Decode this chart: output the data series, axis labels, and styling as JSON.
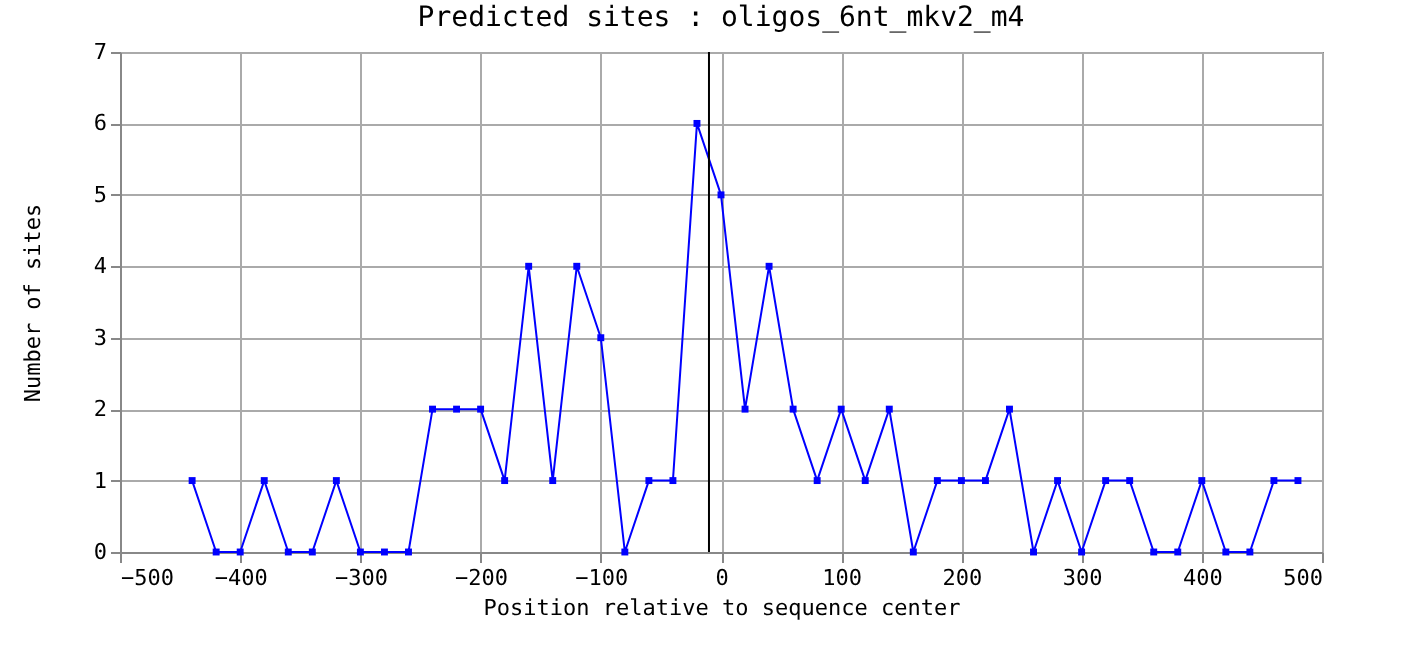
{
  "chart_data": {
    "type": "line",
    "title": "Predicted sites : oligos_6nt_mkv2_m4",
    "xlabel": "Position relative to sequence center",
    "ylabel": "Number of sites",
    "x": [
      -440,
      -420,
      -400,
      -380,
      -360,
      -340,
      -320,
      -300,
      -280,
      -260,
      -240,
      -220,
      -200,
      -180,
      -160,
      -140,
      -120,
      -100,
      -80,
      -60,
      -40,
      -20,
      0,
      20,
      40,
      60,
      80,
      100,
      120,
      140,
      160,
      180,
      200,
      220,
      240,
      260,
      280,
      300,
      320,
      340,
      360,
      380,
      400,
      420,
      440,
      460,
      480
    ],
    "series": [
      {
        "color": "#0000ff",
        "values": [
          1,
          0,
          0,
          1,
          0,
          0,
          1,
          0,
          0,
          0,
          2,
          2,
          2,
          1,
          4,
          1,
          4,
          3,
          0,
          1,
          1,
          6,
          5,
          2,
          4,
          2,
          1,
          2,
          1,
          2,
          0,
          1,
          1,
          1,
          2,
          0,
          1,
          0,
          1,
          1,
          0,
          0,
          1,
          0,
          0,
          1,
          1
        ]
      }
    ],
    "xlim": [
      -500,
      500
    ],
    "xticks": [
      -500,
      -400,
      -300,
      -200,
      -100,
      0,
      100,
      200,
      300,
      400,
      500
    ],
    "ylim": [
      0,
      7
    ],
    "yticks": [
      0,
      1,
      2,
      3,
      4,
      5,
      6,
      7
    ],
    "ref_lines": [
      {
        "axis": "x",
        "value": -10,
        "color": "#000000"
      }
    ],
    "grid": true,
    "legend": false,
    "marker": "square",
    "line_style": "solid"
  }
}
